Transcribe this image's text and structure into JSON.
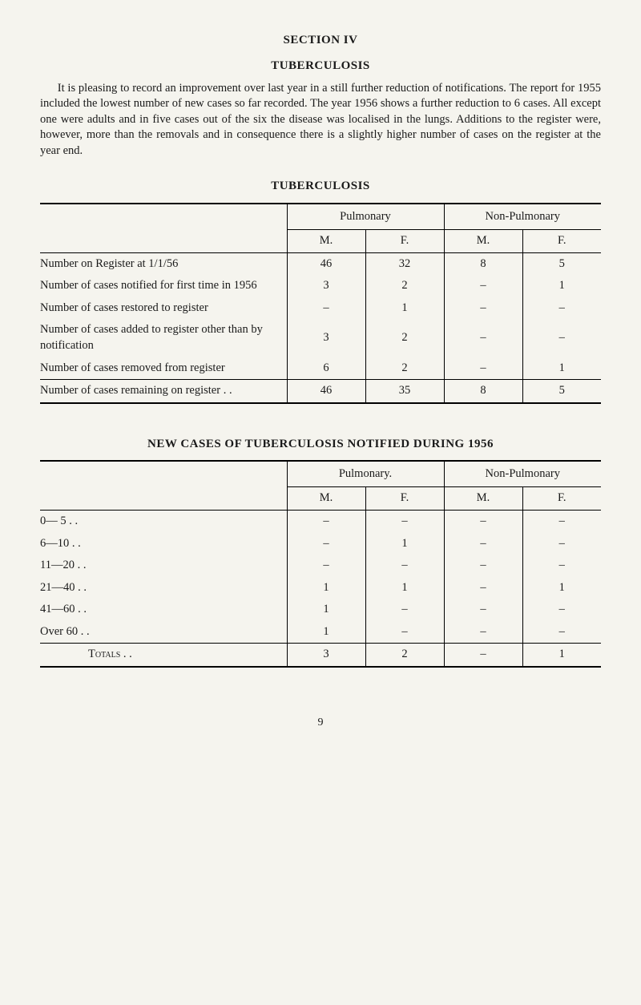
{
  "section_title": "SECTION IV",
  "subtitle": "TUBERCULOSIS",
  "intro": "It is pleasing to record an improvement over last year in a still further reduction of notifications. The report for 1955 included the lowest number of new cases so far recorded. The year 1956 shows a further reduction to 6 cases. All except one were adults and in five cases out of the six the disease was localised in the lungs. Additions to the register were, however, more than the removals and in consequence there is a slightly higher number of cases on the register at the year end.",
  "table1": {
    "title": "TUBERCULOSIS",
    "groups": [
      "Pulmonary",
      "Non-Pulmonary"
    ],
    "subheaders": [
      "M.",
      "F.",
      "M.",
      "F."
    ],
    "rows": [
      {
        "label": "Number on Register at 1/1/56",
        "values": [
          "46",
          "32",
          "8",
          "5"
        ]
      },
      {
        "label": "Number of cases notified for first time in 1956",
        "values": [
          "3",
          "2",
          "–",
          "1"
        ]
      },
      {
        "label": "Number of cases restored to register",
        "values": [
          "–",
          "1",
          "–",
          "–"
        ]
      },
      {
        "label": "Number of cases added to register other than by notification",
        "values": [
          "3",
          "2",
          "–",
          "–"
        ]
      },
      {
        "label": "Number of cases removed from register",
        "values": [
          "6",
          "2",
          "–",
          "1"
        ]
      },
      {
        "label": "Number of cases remaining on register . .",
        "values": [
          "46",
          "35",
          "8",
          "5"
        ]
      }
    ]
  },
  "table2": {
    "title": "NEW CASES OF TUBERCULOSIS NOTIFIED DURING 1956",
    "groups": [
      "Pulmonary.",
      "Non-Pulmonary"
    ],
    "subheaders": [
      "M.",
      "F.",
      "M.",
      "F."
    ],
    "rows": [
      {
        "label": "0— 5",
        "values": [
          "–",
          "–",
          "–",
          "–"
        ]
      },
      {
        "label": "6—10",
        "values": [
          "–",
          "1",
          "–",
          "–"
        ]
      },
      {
        "label": "11—20",
        "values": [
          "–",
          "–",
          "–",
          "–"
        ]
      },
      {
        "label": "21—40",
        "values": [
          "1",
          "1",
          "–",
          "1"
        ]
      },
      {
        "label": "41—60",
        "values": [
          "1",
          "–",
          "–",
          "–"
        ]
      },
      {
        "label": "Over 60",
        "values": [
          "1",
          "–",
          "–",
          "–"
        ]
      }
    ],
    "totals": {
      "label": "Totals",
      "values": [
        "3",
        "2",
        "–",
        "1"
      ]
    }
  },
  "page_number": "9"
}
